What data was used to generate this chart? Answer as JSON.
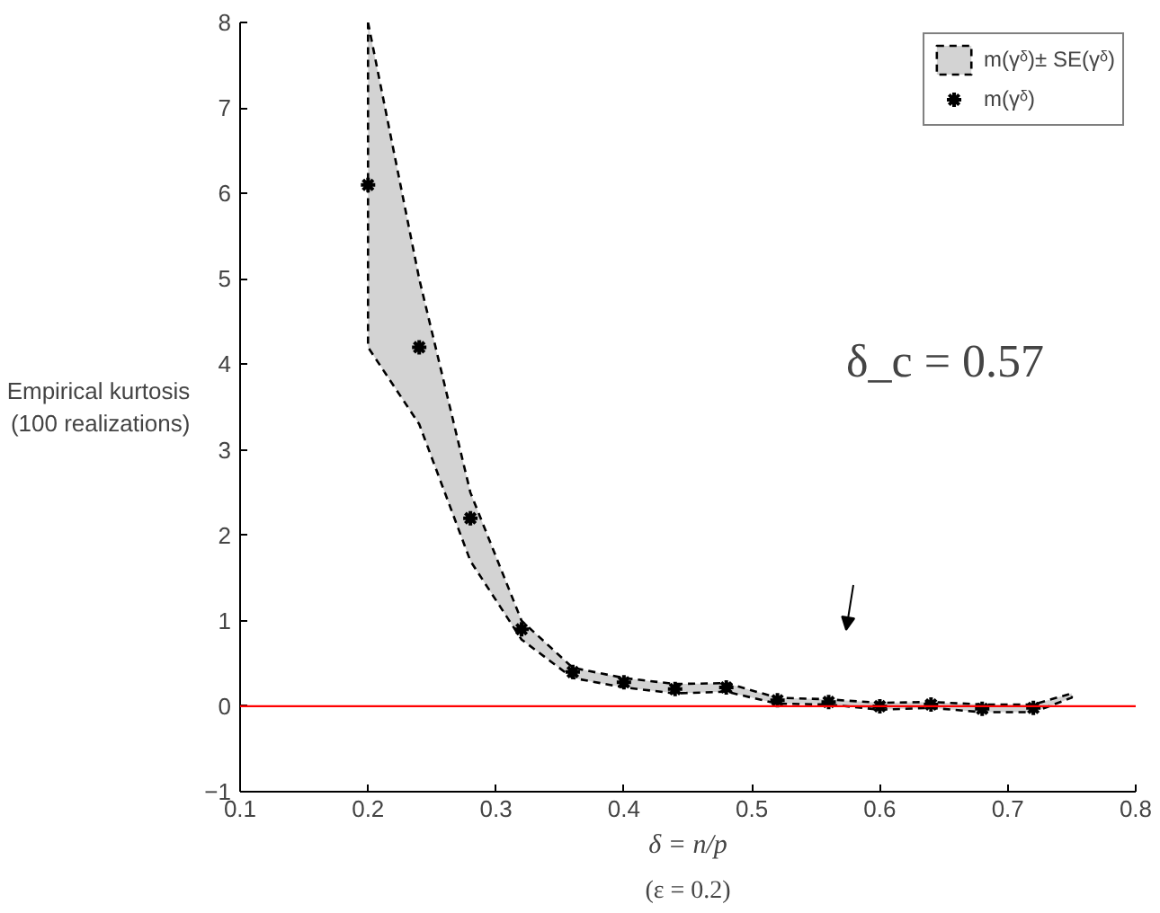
{
  "chart_data": {
    "type": "scatter",
    "xlabel": "δ = n/p",
    "ylabel": "Empirical kurtosis\n(100 realizations)",
    "xlim": [
      0.1,
      0.8
    ],
    "ylim": [
      -1,
      8
    ],
    "xticks": [
      0.1,
      0.2,
      0.3,
      0.4,
      0.5,
      0.6,
      0.7,
      0.8
    ],
    "yticks": [
      -1,
      0,
      1,
      2,
      3,
      4,
      5,
      6,
      7,
      8
    ],
    "grid": false,
    "legend": "top right",
    "series": [
      {
        "name": "m(γᵟ)± SE(γᵟ)",
        "type": "area",
        "color": "#d3d3d3",
        "line_style": "dashed",
        "x": [
          0.2,
          0.24,
          0.28,
          0.32,
          0.36,
          0.4,
          0.44,
          0.48,
          0.52,
          0.56,
          0.6,
          0.64,
          0.68,
          0.72,
          0.75
        ],
        "values": [
          null,
          null,
          null,
          null,
          null,
          null,
          null,
          null,
          null,
          null,
          null,
          null,
          null,
          null,
          null
        ],
        "lower": [
          4.2,
          3.3,
          1.7,
          0.78,
          0.33,
          0.22,
          0.15,
          0.17,
          0.03,
          0.02,
          -0.04,
          -0.02,
          -0.07,
          -0.07,
          0.1
        ],
        "upper": [
          8.0,
          5.0,
          2.5,
          1.0,
          0.45,
          0.33,
          0.26,
          0.27,
          0.1,
          0.08,
          0.04,
          0.05,
          0.02,
          0.02,
          0.15
        ]
      },
      {
        "name": "m(γᵟ)",
        "color": "#000000",
        "marker": "cross",
        "x": [
          0.2,
          0.24,
          0.28,
          0.32,
          0.36,
          0.4,
          0.44,
          0.48,
          0.52,
          0.56,
          0.6,
          0.64,
          0.68,
          0.72
        ],
        "values": [
          6.1,
          4.2,
          2.2,
          0.9,
          0.4,
          0.28,
          0.2,
          0.22,
          0.07,
          0.05,
          0.0,
          0.02,
          -0.03,
          -0.02
        ]
      }
    ],
    "ref_lines": [
      {
        "axis": "y",
        "value": 0,
        "label": null,
        "color": "#ff0000"
      }
    ],
    "annotations": [
      "δ_c = 0.57",
      "(ε = 0.2)"
    ]
  }
}
